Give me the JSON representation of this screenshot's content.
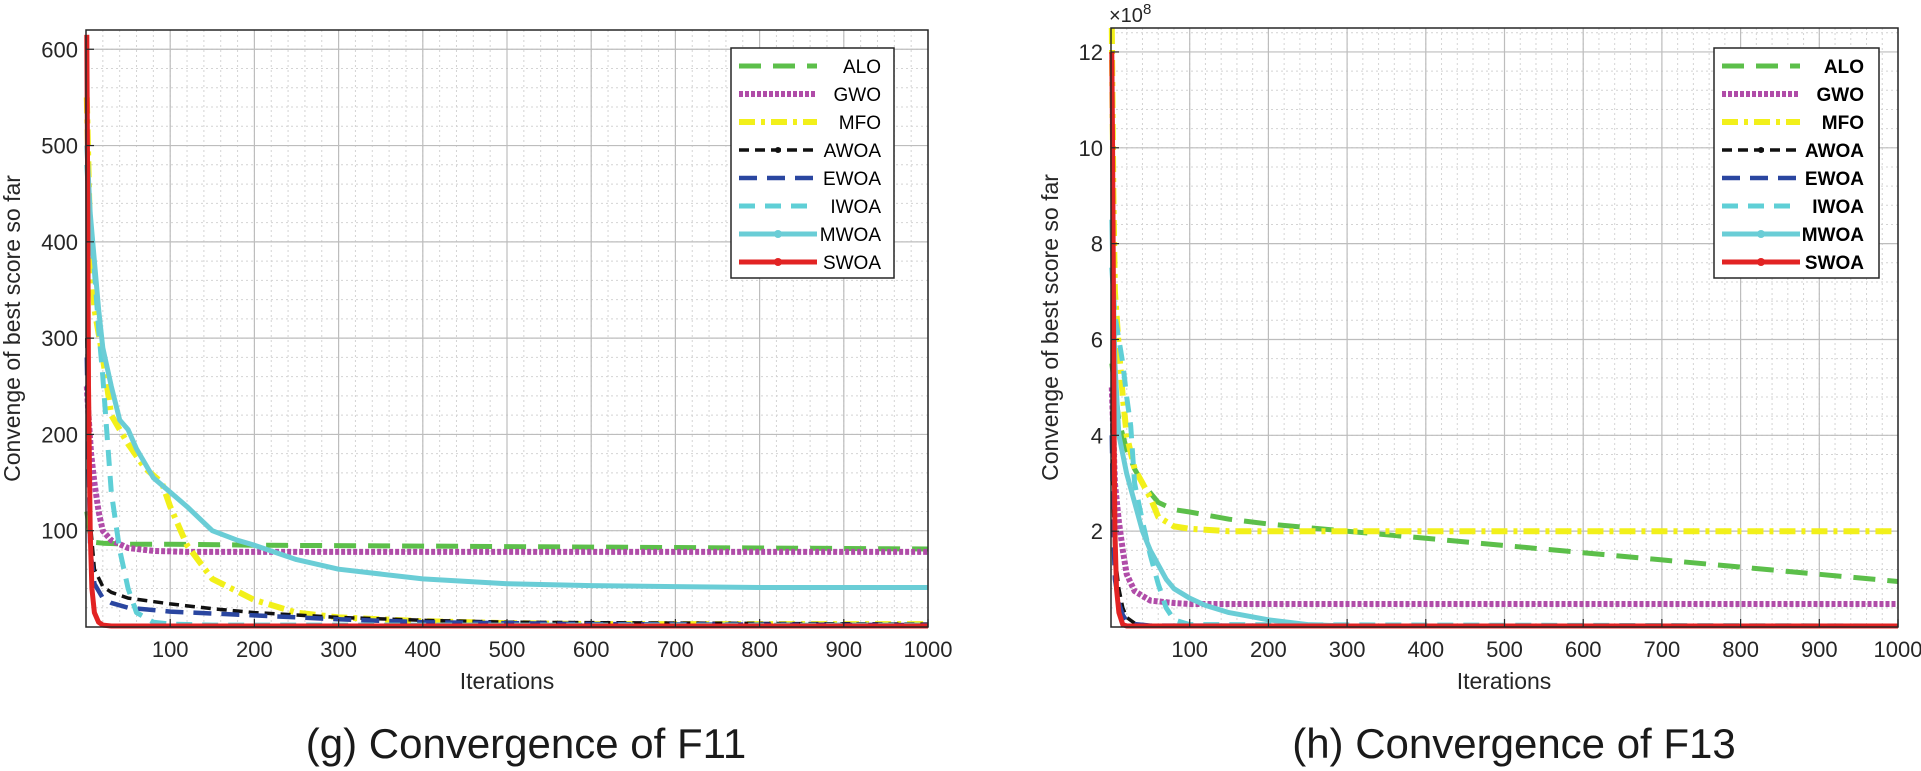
{
  "chart_data": [
    {
      "type": "line",
      "caption": "(g) Convergence of F11",
      "xlabel": "Iterations",
      "ylabel": "Convenge of best score so far",
      "xlim": [
        0,
        1000
      ],
      "ylim": [
        0,
        620
      ],
      "xticks": [
        100,
        200,
        300,
        400,
        500,
        600,
        700,
        800,
        900,
        1000
      ],
      "yticks": [
        100,
        200,
        300,
        400,
        500,
        600
      ],
      "grid": true,
      "legend_position": "top-right",
      "series": [
        {
          "name": "ALO",
          "x": [
            1,
            5,
            10,
            20,
            50,
            100,
            200,
            400,
            600,
            800,
            1000
          ],
          "y": [
            120,
            95,
            88,
            87,
            86,
            86,
            85,
            84,
            83,
            82,
            81
          ]
        },
        {
          "name": "GWO",
          "x": [
            1,
            3,
            6,
            10,
            15,
            20,
            30,
            50,
            80,
            120,
            200,
            400,
            700,
            1000
          ],
          "y": [
            250,
            220,
            180,
            150,
            120,
            100,
            90,
            82,
            79,
            78,
            78,
            78,
            78,
            78
          ]
        },
        {
          "name": "MFO",
          "x": [
            1,
            5,
            10,
            20,
            30,
            50,
            70,
            90,
            100,
            120,
            150,
            200,
            250,
            300,
            350,
            400,
            500,
            600,
            700,
            800,
            1000
          ],
          "y": [
            550,
            400,
            330,
            280,
            220,
            190,
            165,
            150,
            125,
            85,
            50,
            28,
            15,
            10,
            8,
            6,
            4,
            3,
            3,
            3,
            3
          ]
        },
        {
          "name": "AWOA",
          "x": [
            1,
            5,
            10,
            20,
            30,
            50,
            100,
            150,
            200,
            300,
            400,
            500,
            700,
            1000
          ],
          "y": [
            300,
            110,
            60,
            42,
            36,
            30,
            24,
            19,
            15,
            10,
            7,
            5,
            4,
            3
          ]
        },
        {
          "name": "EWOA",
          "x": [
            1,
            5,
            10,
            20,
            30,
            50,
            100,
            150,
            200,
            300,
            400,
            600,
            1000
          ],
          "y": [
            280,
            80,
            45,
            30,
            25,
            20,
            16,
            14,
            12,
            8,
            5,
            3,
            2
          ]
        },
        {
          "name": "IWOA",
          "x": [
            1,
            5,
            10,
            15,
            20,
            25,
            30,
            40,
            50,
            60,
            80,
            100,
            150,
            200,
            300,
            500,
            1000
          ],
          "y": [
            480,
            420,
            370,
            310,
            260,
            200,
            140,
            80,
            40,
            15,
            5,
            3,
            2,
            2,
            2,
            2,
            2
          ]
        },
        {
          "name": "MWOA",
          "x": [
            1,
            5,
            10,
            15,
            20,
            30,
            40,
            50,
            60,
            70,
            80,
            100,
            120,
            150,
            180,
            200,
            250,
            300,
            400,
            500,
            600,
            700,
            800,
            900,
            1000
          ],
          "y": [
            500,
            430,
            380,
            330,
            290,
            250,
            215,
            205,
            185,
            170,
            155,
            140,
            125,
            100,
            90,
            85,
            70,
            60,
            50,
            45,
            43,
            42,
            41,
            41,
            41
          ]
        },
        {
          "name": "SWOA",
          "x": [
            1,
            2,
            3,
            5,
            7,
            10,
            15,
            20,
            30,
            50,
            100,
            1000
          ],
          "y": [
            615,
            450,
            250,
            100,
            40,
            15,
            5,
            2,
            1,
            1,
            1,
            1
          ]
        }
      ]
    },
    {
      "type": "line",
      "caption": "(h) Convergence of F13",
      "xlabel": "Iterations",
      "ylabel": "Convenge of best score so far",
      "yexponent": "×10",
      "yexponent_power": "8",
      "xlim": [
        0,
        1000
      ],
      "ylim": [
        0,
        12.5
      ],
      "xticks": [
        100,
        200,
        300,
        400,
        500,
        600,
        700,
        800,
        900,
        1000
      ],
      "yticks": [
        2,
        4,
        6,
        8,
        10,
        12
      ],
      "grid": true,
      "legend_position": "top-right",
      "series": [
        {
          "name": "ALO",
          "x": [
            1,
            5,
            10,
            20,
            30,
            40,
            50,
            60,
            80,
            100,
            150,
            200,
            300,
            400,
            500,
            600,
            700,
            800,
            900,
            1000
          ],
          "y": [
            5.5,
            5.0,
            4.3,
            3.7,
            3.3,
            3.0,
            2.8,
            2.6,
            2.45,
            2.4,
            2.25,
            2.15,
            2.0,
            1.85,
            1.7,
            1.55,
            1.4,
            1.25,
            1.1,
            0.95
          ]
        },
        {
          "name": "GWO",
          "x": [
            1,
            3,
            5,
            10,
            15,
            20,
            30,
            50,
            80,
            100,
            150,
            200,
            1000
          ],
          "y": [
            5.0,
            4.0,
            3.0,
            2.2,
            1.6,
            1.1,
            0.75,
            0.55,
            0.5,
            0.48,
            0.48,
            0.48,
            0.48
          ]
        },
        {
          "name": "MFO",
          "x": [
            1,
            3,
            5,
            10,
            15,
            20,
            30,
            40,
            50,
            60,
            80,
            100,
            150,
            200,
            300,
            1000
          ],
          "y": [
            12.5,
            9.0,
            7.0,
            5.8,
            4.8,
            4.0,
            3.3,
            3.0,
            2.7,
            2.3,
            2.1,
            2.05,
            2.0,
            2.0,
            2.0,
            2.0
          ]
        },
        {
          "name": "AWOA",
          "x": [
            1,
            3,
            5,
            10,
            15,
            20,
            30,
            50,
            1000
          ],
          "y": [
            4.5,
            2.5,
            1.5,
            0.8,
            0.4,
            0.2,
            0.08,
            0.03,
            0.02
          ]
        },
        {
          "name": "EWOA",
          "x": [
            1,
            3,
            5,
            10,
            15,
            20,
            30,
            50,
            1000
          ],
          "y": [
            4.0,
            2.0,
            1.0,
            0.5,
            0.25,
            0.12,
            0.06,
            0.03,
            0.02
          ]
        },
        {
          "name": "IWOA",
          "x": [
            1,
            5,
            10,
            15,
            20,
            25,
            30,
            40,
            50,
            60,
            70,
            80,
            100,
            1000
          ],
          "y": [
            7.5,
            6.5,
            6.0,
            5.5,
            4.8,
            4.2,
            3.0,
            2.2,
            1.5,
            0.9,
            0.4,
            0.15,
            0.05,
            0.02
          ]
        },
        {
          "name": "MWOA",
          "x": [
            1,
            5,
            10,
            20,
            30,
            40,
            50,
            60,
            70,
            80,
            100,
            120,
            150,
            200,
            250,
            300,
            1000
          ],
          "y": [
            8.5,
            5.5,
            4.0,
            3.2,
            2.6,
            2.0,
            1.6,
            1.3,
            1.0,
            0.8,
            0.6,
            0.45,
            0.3,
            0.15,
            0.05,
            0.02,
            0.02
          ]
        },
        {
          "name": "SWOA",
          "x": [
            1,
            2,
            3,
            4,
            5,
            7,
            10,
            15,
            20,
            1000
          ],
          "y": [
            12.0,
            10.0,
            7.0,
            4.0,
            2.0,
            0.8,
            0.3,
            0.05,
            0.02,
            0.02
          ]
        }
      ]
    }
  ],
  "style": {
    "colors": {
      "ALO": "#5cbf4a",
      "GWO": "#b04ca8",
      "MFO": "#f2f01a",
      "AWOA": "#111111",
      "EWOA": "#2a46a0",
      "IWOA": "#5fcfd6",
      "MWOA": "#6acdd6",
      "SWOA": "#e22323"
    }
  }
}
